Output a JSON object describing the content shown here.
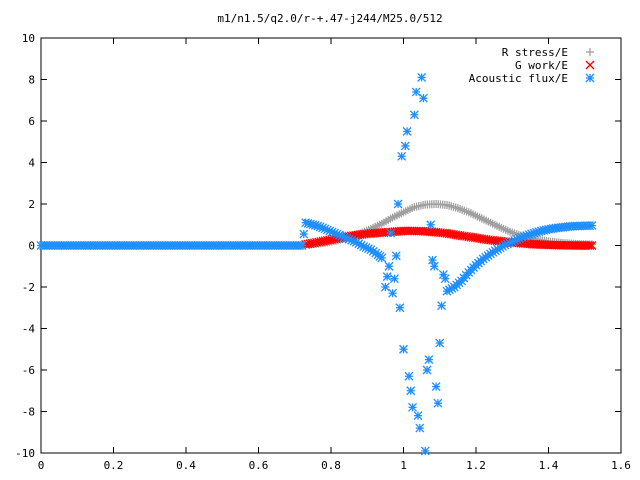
{
  "chart_data": {
    "type": "scatter",
    "title": "m1/n1.5/q2.0/r-+.47-j244/M25.0/512",
    "xlabel": "",
    "ylabel": "",
    "xlim": [
      0,
      1.6
    ],
    "ylim": [
      -10,
      10
    ],
    "x_ticks": [
      "0",
      "0.2",
      "0.4",
      "0.6",
      "0.8",
      "1",
      "1.2",
      "1.4",
      "1.6"
    ],
    "y_ticks": [
      "10",
      "8",
      "6",
      "4",
      "2",
      "0",
      "-2",
      "-4",
      "-6",
      "-8",
      "-10"
    ],
    "grid": false,
    "legend_position": "top-right",
    "series": [
      {
        "name": "R stress/E",
        "color": "#a0a0a0",
        "marker": "plus",
        "points": [
          [
            0.73,
            0.05
          ],
          [
            0.76,
            0.08
          ],
          [
            0.79,
            0.15
          ],
          [
            0.82,
            0.25
          ],
          [
            0.85,
            0.4
          ],
          [
            0.88,
            0.58
          ],
          [
            0.91,
            0.8
          ],
          [
            0.94,
            1.05
          ],
          [
            0.97,
            1.35
          ],
          [
            1.0,
            1.6
          ],
          [
            1.03,
            1.85
          ],
          [
            1.06,
            1.97
          ],
          [
            1.09,
            2.0
          ],
          [
            1.12,
            1.95
          ],
          [
            1.15,
            1.8
          ],
          [
            1.18,
            1.6
          ],
          [
            1.21,
            1.35
          ],
          [
            1.24,
            1.1
          ],
          [
            1.27,
            0.85
          ],
          [
            1.3,
            0.62
          ],
          [
            1.33,
            0.45
          ],
          [
            1.36,
            0.32
          ],
          [
            1.4,
            0.2
          ],
          [
            1.44,
            0.12
          ],
          [
            1.48,
            0.07
          ],
          [
            1.52,
            0.05
          ]
        ]
      },
      {
        "name": "G work/E",
        "color": "#ff0000",
        "marker": "cross",
        "points": [
          [
            0.73,
            0.05
          ],
          [
            0.76,
            0.15
          ],
          [
            0.79,
            0.25
          ],
          [
            0.82,
            0.35
          ],
          [
            0.85,
            0.45
          ],
          [
            0.88,
            0.52
          ],
          [
            0.91,
            0.58
          ],
          [
            0.94,
            0.62
          ],
          [
            0.97,
            0.66
          ],
          [
            1.0,
            0.7
          ],
          [
            1.03,
            0.7
          ],
          [
            1.06,
            0.68
          ],
          [
            1.09,
            0.64
          ],
          [
            1.12,
            0.58
          ],
          [
            1.15,
            0.5
          ],
          [
            1.18,
            0.42
          ],
          [
            1.21,
            0.34
          ],
          [
            1.24,
            0.26
          ],
          [
            1.27,
            0.2
          ],
          [
            1.3,
            0.14
          ],
          [
            1.33,
            0.1
          ],
          [
            1.36,
            0.06
          ],
          [
            1.4,
            0.03
          ],
          [
            1.44,
            0.01
          ],
          [
            1.48,
            0.0
          ],
          [
            1.52,
            0.0
          ]
        ]
      },
      {
        "name": "Acoustic flux/E",
        "color": "#1e8fff",
        "marker": "star",
        "points": [
          [
            0.0,
            0
          ],
          [
            0.02,
            0
          ],
          [
            0.04,
            0
          ],
          [
            0.06,
            0
          ],
          [
            0.08,
            0
          ],
          [
            0.1,
            0
          ],
          [
            0.12,
            0
          ],
          [
            0.14,
            0
          ],
          [
            0.16,
            0
          ],
          [
            0.18,
            0
          ],
          [
            0.2,
            0
          ],
          [
            0.22,
            0
          ],
          [
            0.24,
            0
          ],
          [
            0.26,
            0
          ],
          [
            0.28,
            0
          ],
          [
            0.3,
            0
          ],
          [
            0.32,
            0
          ],
          [
            0.34,
            0
          ],
          [
            0.36,
            0
          ],
          [
            0.38,
            0
          ],
          [
            0.4,
            0
          ],
          [
            0.42,
            0
          ],
          [
            0.44,
            0
          ],
          [
            0.46,
            0
          ],
          [
            0.48,
            0
          ],
          [
            0.5,
            0
          ],
          [
            0.52,
            0
          ],
          [
            0.54,
            0
          ],
          [
            0.56,
            0
          ],
          [
            0.58,
            0
          ],
          [
            0.6,
            0
          ],
          [
            0.62,
            0
          ],
          [
            0.64,
            0
          ],
          [
            0.66,
            0
          ],
          [
            0.68,
            0
          ],
          [
            0.7,
            0
          ],
          [
            0.72,
            0
          ],
          [
            0.73,
            1.1
          ],
          [
            0.75,
            1.0
          ],
          [
            0.77,
            0.9
          ],
          [
            0.79,
            0.75
          ],
          [
            0.81,
            0.6
          ],
          [
            0.83,
            0.45
          ],
          [
            0.85,
            0.3
          ],
          [
            0.87,
            0.15
          ],
          [
            0.89,
            -0.05
          ],
          [
            0.91,
            -0.2
          ],
          [
            0.93,
            -0.45
          ],
          [
            0.94,
            -0.6
          ],
          [
            0.95,
            -2.0
          ],
          [
            0.96,
            -1.0
          ],
          [
            0.965,
            0.6
          ],
          [
            0.97,
            -2.3
          ],
          [
            0.975,
            -1.6
          ],
          [
            0.98,
            -0.5
          ],
          [
            0.985,
            2.0
          ],
          [
            0.99,
            -3.0
          ],
          [
            0.995,
            4.3
          ],
          [
            1.0,
            -5.0
          ],
          [
            1.005,
            4.8
          ],
          [
            1.01,
            5.5
          ],
          [
            1.015,
            -6.3
          ],
          [
            1.02,
            -7.0
          ],
          [
            1.025,
            -7.8
          ],
          [
            1.03,
            6.3
          ],
          [
            1.035,
            7.4
          ],
          [
            1.04,
            -8.2
          ],
          [
            1.045,
            -8.8
          ],
          [
            1.05,
            8.1
          ],
          [
            1.055,
            7.1
          ],
          [
            1.06,
            -9.9
          ],
          [
            1.065,
            -6.0
          ],
          [
            1.07,
            -5.5
          ],
          [
            1.075,
            1.0
          ],
          [
            1.08,
            -0.7
          ],
          [
            1.085,
            -1.0
          ],
          [
            1.09,
            -6.8
          ],
          [
            1.095,
            -7.6
          ],
          [
            1.1,
            -4.7
          ],
          [
            1.105,
            -2.9
          ],
          [
            1.11,
            -1.4
          ],
          [
            1.115,
            -1.6
          ],
          [
            1.12,
            -2.2
          ],
          [
            1.14,
            -2.0
          ],
          [
            1.16,
            -1.7
          ],
          [
            1.18,
            -1.3
          ],
          [
            1.2,
            -0.95
          ],
          [
            1.22,
            -0.65
          ],
          [
            1.24,
            -0.4
          ],
          [
            1.26,
            -0.18
          ],
          [
            1.28,
            0.02
          ],
          [
            1.3,
            0.18
          ],
          [
            1.32,
            0.35
          ],
          [
            1.34,
            0.48
          ],
          [
            1.36,
            0.6
          ],
          [
            1.38,
            0.7
          ],
          [
            1.4,
            0.78
          ],
          [
            1.42,
            0.84
          ],
          [
            1.44,
            0.88
          ],
          [
            1.46,
            0.92
          ],
          [
            1.48,
            0.94
          ],
          [
            1.5,
            0.95
          ],
          [
            1.52,
            0.96
          ]
        ]
      }
    ]
  }
}
